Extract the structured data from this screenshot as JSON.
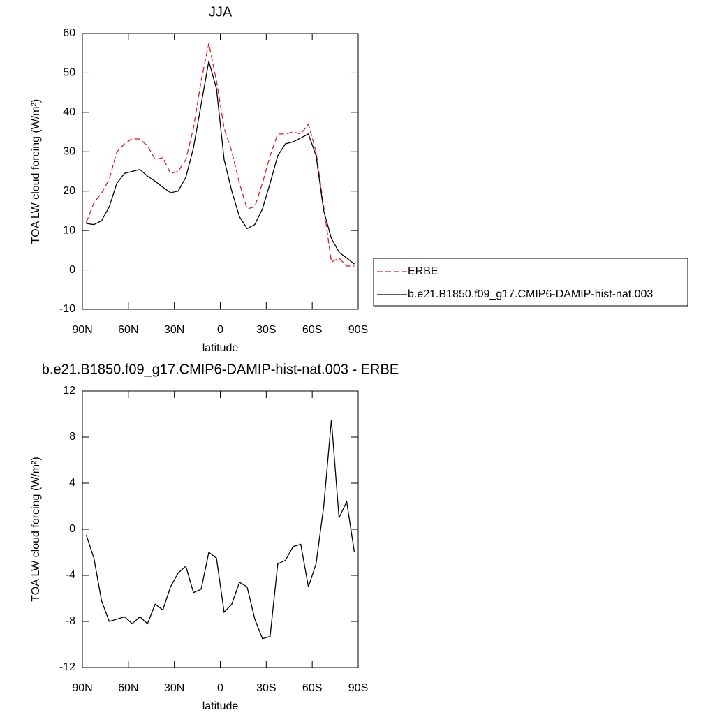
{
  "chart_data": [
    {
      "type": "line",
      "title": "JJA",
      "x_label": "latitude",
      "y_label": "TOA LW cloud forcing (W/m²)",
      "x": [
        87.5,
        82.5,
        77.5,
        72.5,
        67.5,
        62.5,
        57.5,
        52.5,
        47.5,
        42.5,
        37.5,
        32.5,
        27.5,
        22.5,
        17.5,
        12.5,
        7.5,
        2.5,
        -2.5,
        -7.5,
        -12.5,
        -17.5,
        -22.5,
        -27.5,
        -32.5,
        -37.5,
        -42.5,
        -47.5,
        -52.5,
        -57.5,
        -62.5,
        -67.5,
        -72.5,
        -77.5,
        -82.5,
        -87.5
      ],
      "series": [
        {
          "name": "ERBE",
          "color": "#e31a1c",
          "dashed": true,
          "values": [
            12,
            17,
            19.5,
            23,
            30,
            32,
            33.3,
            33.2,
            31.5,
            28,
            28.5,
            24.5,
            25,
            28,
            36,
            48,
            57.5,
            48,
            36,
            30,
            22,
            15.5,
            16,
            22,
            29,
            34.5,
            34.5,
            35,
            34.5,
            37,
            30,
            16,
            2,
            3,
            1,
            1
          ]
        },
        {
          "name": "b.e21.B1850.f09_g17.CMIP6-DAMIP-hist-nat.003",
          "color": "#000000",
          "dashed": false,
          "values": [
            11.8,
            11.5,
            12.5,
            16,
            22,
            24.5,
            25,
            25.5,
            23.8,
            22.5,
            21,
            19.6,
            20,
            23.5,
            31,
            42,
            53,
            46,
            28,
            20,
            13.5,
            10.5,
            11.5,
            15.5,
            22,
            29,
            32,
            32.5,
            33.5,
            34.5,
            29,
            15,
            8,
            4.5,
            3,
            1.5
          ]
        }
      ],
      "xlim": [
        90,
        -90
      ],
      "xticks": [
        {
          "value": 90,
          "label": "90N"
        },
        {
          "value": 60,
          "label": "60N"
        },
        {
          "value": 30,
          "label": "30N"
        },
        0,
        {
          "value": -30,
          "label": "30S"
        },
        {
          "value": -60,
          "label": "60S"
        },
        {
          "value": -90,
          "label": "90S"
        }
      ],
      "ylim": [
        -10,
        60
      ],
      "yticks": [
        60,
        50,
        40,
        30,
        20,
        10,
        0,
        -10
      ],
      "legend": "right"
    },
    {
      "type": "line",
      "title": "b.e21.B1850.f09_g17.CMIP6-DAMIP-hist-nat.003 - ERBE",
      "x_label": "latitude",
      "y_label": "TOA LW cloud forcing (W/m²)",
      "x": [
        87.5,
        82.5,
        77.5,
        72.5,
        67.5,
        62.5,
        57.5,
        52.5,
        47.5,
        42.5,
        37.5,
        32.5,
        27.5,
        22.5,
        17.5,
        12.5,
        7.5,
        2.5,
        -2.5,
        -7.5,
        -12.5,
        -17.5,
        -22.5,
        -27.5,
        -32.5,
        -37.5,
        -42.5,
        -47.5,
        -52.5,
        -57.5,
        -62.5,
        -67.5,
        -72.5,
        -77.5,
        -82.5,
        -87.5
      ],
      "series": [
        {
          "name": null,
          "color": "#000000",
          "dashed": false,
          "values": [
            -0.5,
            -2.5,
            -6.2,
            -8,
            -7.8,
            -7.6,
            -8.2,
            -7.6,
            -8.2,
            -6.5,
            -7,
            -5,
            -3.8,
            -3.2,
            -5.5,
            -5.2,
            -2,
            -2.5,
            -7.2,
            -6.5,
            -4.6,
            -5,
            -7.8,
            -9.5,
            -9.3,
            -3,
            -2.7,
            -1.5,
            -1.3,
            -5,
            -3,
            2,
            9.5,
            1,
            2.4,
            -2
          ]
        }
      ],
      "xlim": [
        90,
        -90
      ],
      "xticks": [
        {
          "value": 90,
          "label": "90N"
        },
        {
          "value": 60,
          "label": "60N"
        },
        {
          "value": 30,
          "label": "30N"
        },
        0,
        {
          "value": -30,
          "label": "30S"
        },
        {
          "value": -60,
          "label": "60S"
        },
        {
          "value": -90,
          "label": "90S"
        }
      ],
      "ylim": [
        -12,
        12
      ],
      "yticks": [
        12,
        8,
        4,
        0,
        -4,
        -8,
        -12
      ]
    }
  ]
}
